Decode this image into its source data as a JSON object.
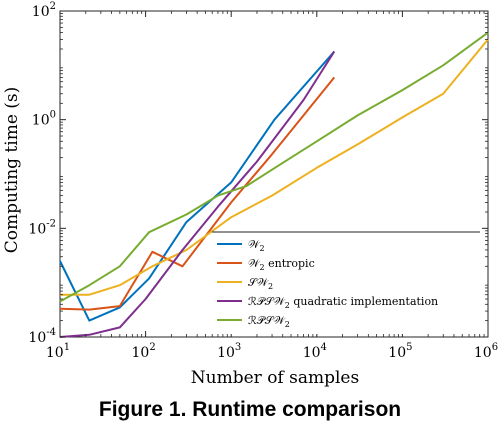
{
  "chart_data": {
    "type": "line",
    "title": "",
    "xlabel": "Number of samples",
    "ylabel": "Computing time (s)",
    "xscale": "log",
    "yscale": "log",
    "xlim": [
      10,
      1000000
    ],
    "ylim": [
      0.0001,
      100
    ],
    "x_ticks": [
      {
        "value": 10,
        "base": "10",
        "exp": "1"
      },
      {
        "value": 100,
        "base": "10",
        "exp": "2"
      },
      {
        "value": 1000,
        "base": "10",
        "exp": "3"
      },
      {
        "value": 10000,
        "base": "10",
        "exp": "4"
      },
      {
        "value": 100000,
        "base": "10",
        "exp": "5"
      },
      {
        "value": 1000000,
        "base": "10",
        "exp": "6"
      }
    ],
    "y_ticks": [
      {
        "value": 0.0001,
        "base": "10",
        "exp": "-4"
      },
      {
        "value": 0.01,
        "base": "10",
        "exp": "-2"
      },
      {
        "value": 1,
        "base": "10",
        "exp": "0"
      },
      {
        "value": 100,
        "base": "10",
        "exp": "2"
      }
    ],
    "grid": false,
    "legend_position": "bottom-right",
    "series": [
      {
        "name": "W2",
        "label_main": "𝒲",
        "label_sub": "2",
        "label_suffix": "",
        "color": "#0072BD",
        "points": [
          [
            10,
            0.0025
          ],
          [
            22,
            0.0002
          ],
          [
            50,
            0.00035
          ],
          [
            110,
            0.0012
          ],
          [
            300,
            0.013
          ],
          [
            1000,
            0.07
          ],
          [
            3200,
            1.0
          ],
          [
            16000,
            18
          ]
        ]
      },
      {
        "name": "W2 entropic",
        "label_main": "𝒲",
        "label_sub": "2",
        "label_suffix": " entropic",
        "color": "#D95319",
        "points": [
          [
            10,
            0.00033
          ],
          [
            22,
            0.00032
          ],
          [
            50,
            0.00037
          ],
          [
            120,
            0.0037
          ],
          [
            270,
            0.002
          ],
          [
            1000,
            0.03
          ],
          [
            3000,
            0.23
          ],
          [
            16000,
            6
          ]
        ]
      },
      {
        "name": "SW2",
        "label_main": "𝒮𝒲",
        "label_sub": "2",
        "label_suffix": "",
        "color": "#EDB120",
        "points": [
          [
            10,
            0.0006
          ],
          [
            22,
            0.0006
          ],
          [
            50,
            0.0009
          ],
          [
            120,
            0.002
          ],
          [
            300,
            0.004
          ],
          [
            1000,
            0.016
          ],
          [
            3000,
            0.04
          ],
          [
            10000,
            0.13
          ],
          [
            30000,
            0.35
          ],
          [
            100000,
            1.1
          ],
          [
            300000,
            3.0
          ],
          [
            1000000,
            30
          ]
        ]
      },
      {
        "name": "RPSW2 quadratic implementation",
        "label_main": "ℛ𝒫𝒮𝒲",
        "label_sub": "2",
        "label_suffix": " quadratic implementation",
        "color": "#7E2F8E",
        "points": [
          [
            10,
            0.0001
          ],
          [
            22,
            0.00011
          ],
          [
            50,
            0.00015
          ],
          [
            100,
            0.0005
          ],
          [
            270,
            0.004
          ],
          [
            700,
            0.025
          ],
          [
            2000,
            0.17
          ],
          [
            7000,
            2.3
          ],
          [
            16000,
            18
          ]
        ]
      },
      {
        "name": "RPSW2",
        "label_main": "ℛ𝒫𝒮𝒲",
        "label_sub": "2",
        "label_suffix": "",
        "color": "#77AC30",
        "points": [
          [
            10,
            0.00045
          ],
          [
            22,
            0.0009
          ],
          [
            50,
            0.002
          ],
          [
            110,
            0.0085
          ],
          [
            300,
            0.018
          ],
          [
            700,
            0.04
          ],
          [
            1500,
            0.06
          ],
          [
            3000,
            0.12
          ],
          [
            10000,
            0.4
          ],
          [
            30000,
            1.2
          ],
          [
            100000,
            3.5
          ],
          [
            300000,
            10
          ],
          [
            1000000,
            40
          ]
        ]
      }
    ]
  },
  "caption": "Figure 1. Runtime comparison"
}
